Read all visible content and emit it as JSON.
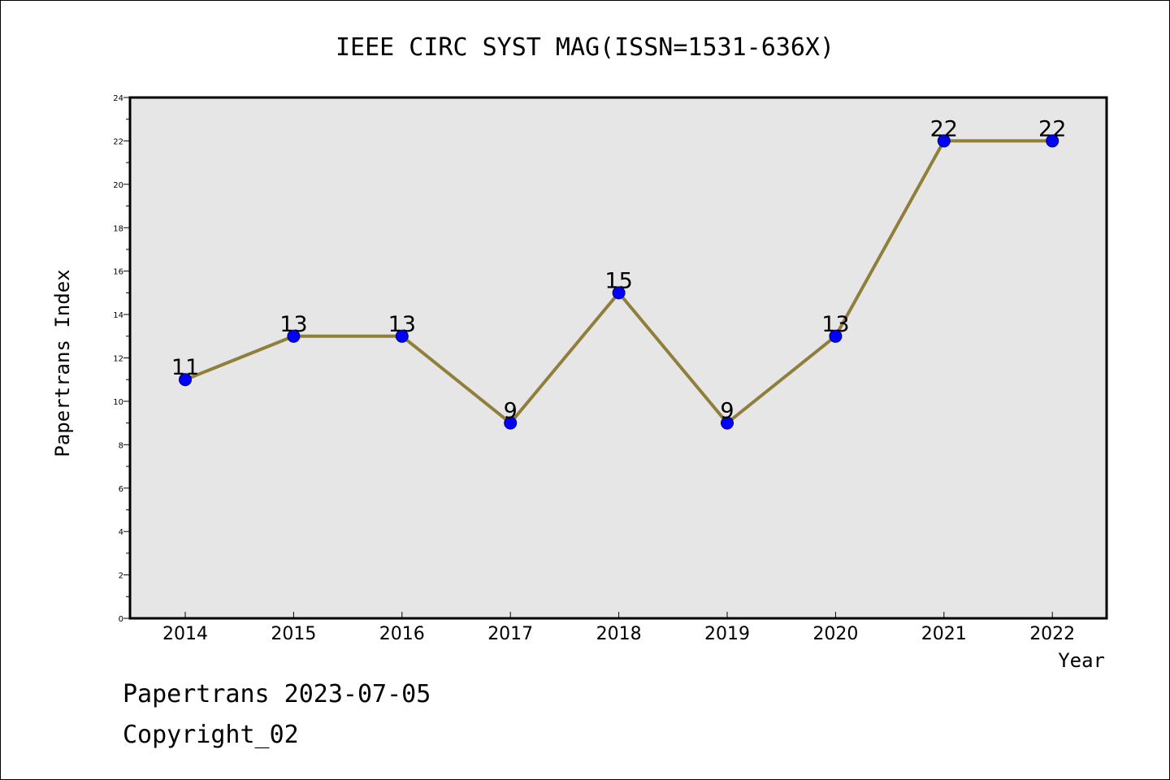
{
  "chart_data": {
    "type": "line",
    "title": "IEEE CIRC SYST MAG(ISSN=1531-636X)",
    "xlabel": "Year",
    "ylabel": "Papertrans Index",
    "categories": [
      "2014",
      "2015",
      "2016",
      "2017",
      "2018",
      "2019",
      "2020",
      "2021",
      "2022"
    ],
    "series": [
      {
        "values": [
          11,
          13,
          13,
          9,
          15,
          9,
          13,
          22,
          22
        ]
      }
    ],
    "ylim": [
      0,
      24
    ],
    "y_major_ticks": [
      0,
      2,
      4,
      6,
      8,
      10,
      12,
      14,
      16,
      18,
      20,
      22,
      24
    ],
    "y_tick_labels": [
      "0",
      "2",
      "4",
      "6",
      "8",
      "10",
      "12",
      "14",
      "16",
      "18",
      "20",
      "22",
      "24"
    ],
    "data_labels": true,
    "grid": false,
    "colors": {
      "plot_background": "#e6e6e6",
      "line": "#8f7f3a",
      "marker": "#0000ff",
      "marker_edge": "#00006e"
    }
  },
  "footer": {
    "source": "Papertrans 2023-07-05",
    "copyright": "Copyright_02"
  }
}
